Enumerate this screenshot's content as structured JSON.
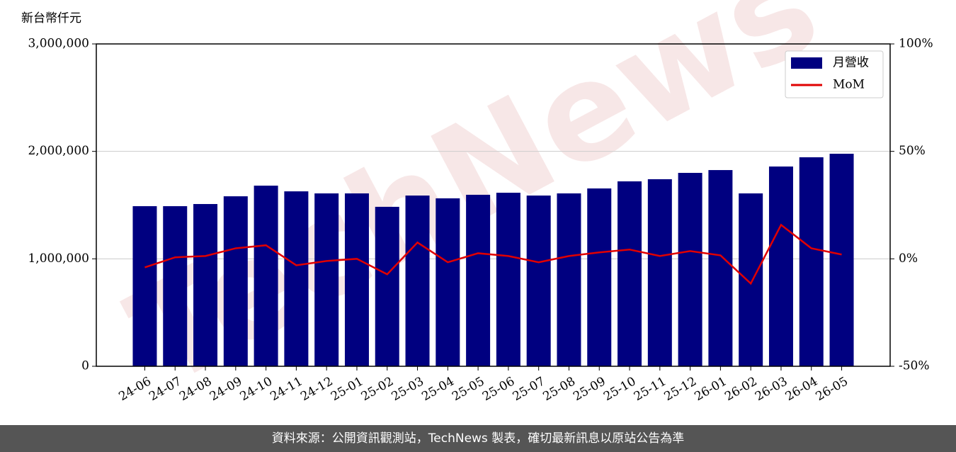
{
  "chart_data": {
    "type": "bar-line",
    "y_axis_title": "新台幣仟元",
    "watermark": "TechNews",
    "categories": [
      "24-06",
      "24-07",
      "24-08",
      "24-09",
      "24-10",
      "24-11",
      "24-12",
      "25-01",
      "25-02",
      "25-03",
      "25-04",
      "25-05",
      "25-06",
      "25-07",
      "25-08",
      "25-09",
      "25-10",
      "25-11",
      "25-12",
      "26-01",
      "26-02",
      "26-03",
      "26-04",
      "26-05"
    ],
    "series": [
      {
        "name": "月營收",
        "type": "bar",
        "color": "#000080",
        "values": [
          1490000,
          1490000,
          1510000,
          1582000,
          1681000,
          1628000,
          1609000,
          1609000,
          1484000,
          1589000,
          1563000,
          1596000,
          1615000,
          1589000,
          1609000,
          1655000,
          1721000,
          1741000,
          1800000,
          1826000,
          1609000,
          1859000,
          1945000,
          1978000
        ]
      },
      {
        "name": "MoM",
        "type": "line",
        "axis": "y2",
        "color": "#e00000",
        "values": [
          -4,
          0.7,
          1.3,
          4.9,
          6.3,
          -3,
          -1,
          0,
          -7.2,
          7.6,
          -1.6,
          2.6,
          1.3,
          -1.6,
          1.3,
          3,
          4.3,
          1.3,
          3.6,
          1.6,
          -11.5,
          15.8,
          4.9,
          2
        ]
      }
    ],
    "ylim": [
      0,
      3000000
    ],
    "yticks": [
      {
        "value": 0,
        "label": "0"
      },
      {
        "value": 1000000,
        "label": "1,000,000"
      },
      {
        "value": 2000000,
        "label": "2,000,000"
      },
      {
        "value": 3000000,
        "label": "3,000,000"
      }
    ],
    "y2lim": [
      -50,
      100
    ],
    "y2ticks": [
      {
        "value": -50,
        "label": "-50%"
      },
      {
        "value": 0,
        "label": "0%"
      },
      {
        "value": 50,
        "label": "50%"
      },
      {
        "value": 100,
        "label": "100%"
      }
    ],
    "grid": true,
    "legend": "upper right"
  },
  "footer": "資料來源：公開資訊觀測站，TechNews 製表，確切最新訊息以原站公告為準"
}
